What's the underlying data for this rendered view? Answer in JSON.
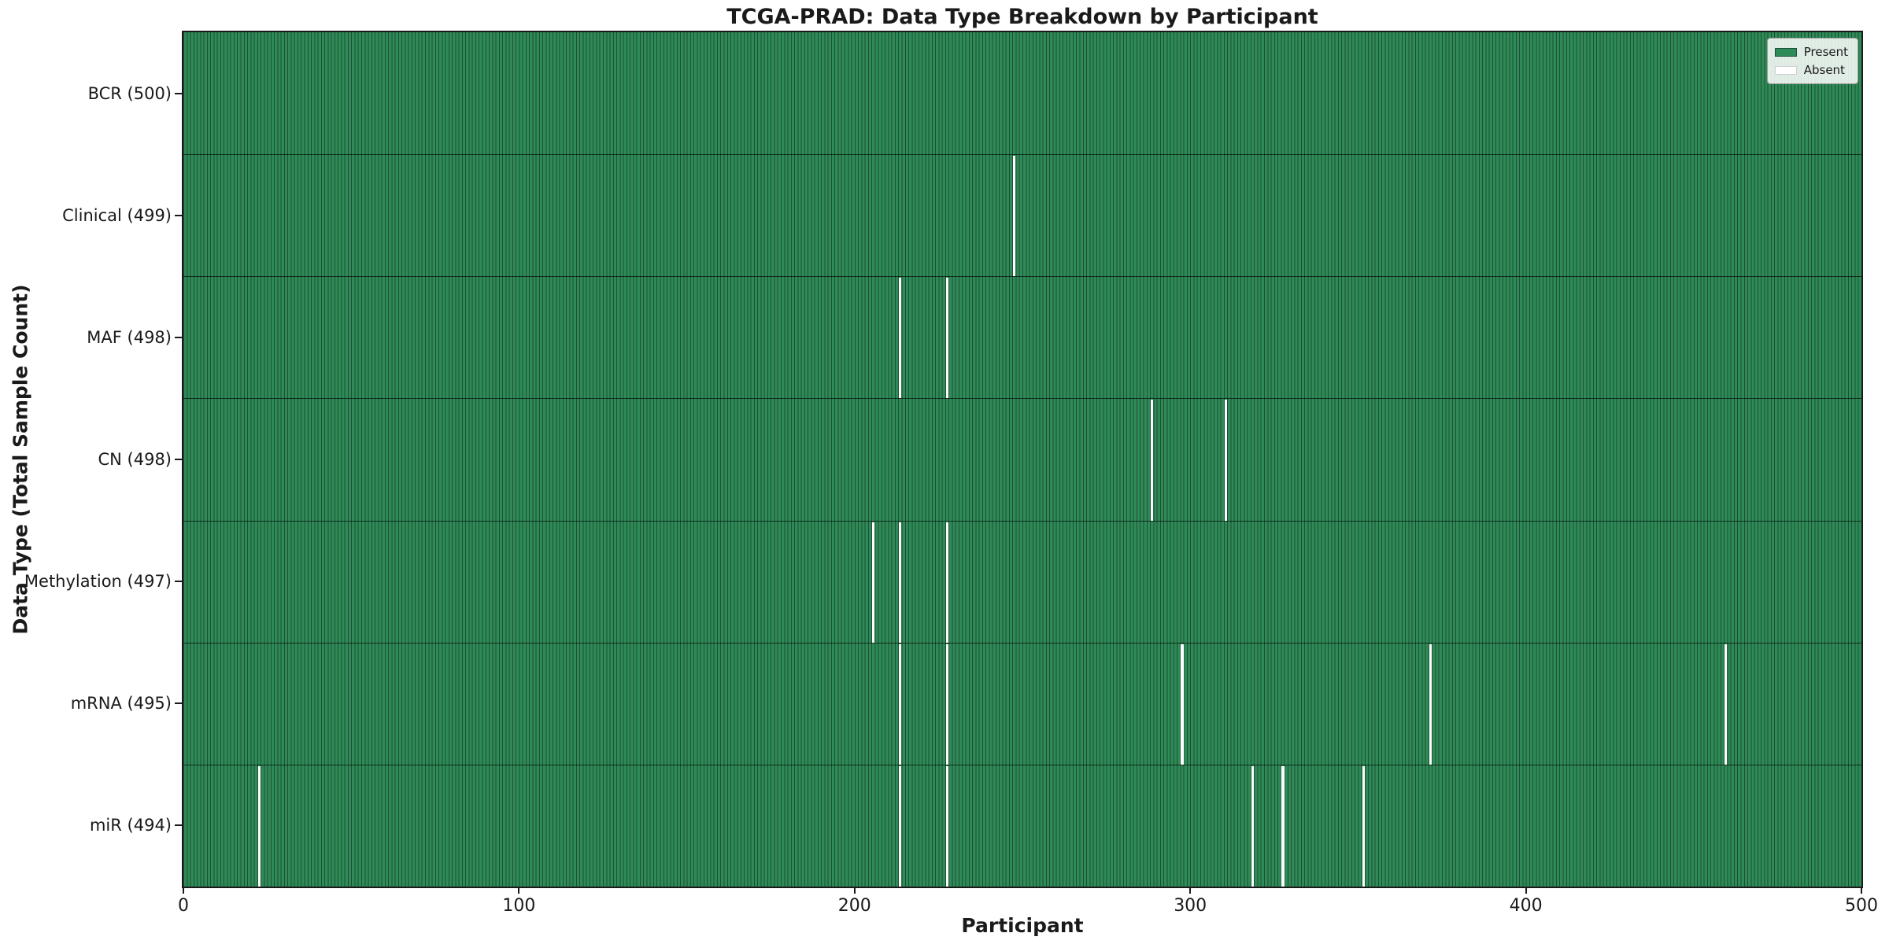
{
  "chart_data": {
    "type": "heatmap",
    "title": "TCGA-PRAD: Data Type Breakdown by Participant",
    "xlabel": "Participant",
    "ylabel": "Data Type (Total Sample Count)",
    "x_range": [
      0,
      500
    ],
    "xticks": [
      0,
      100,
      200,
      300,
      400,
      500
    ],
    "n_participants": 500,
    "grid": false,
    "legend_position": "upper right",
    "legend": [
      "Present",
      "Absent"
    ],
    "colors": {
      "present_fill": "#2e8b57",
      "bar_edge": "#1e4f36",
      "absent_fill": "#ffffff",
      "row_separator": "rgba(0,0,0,0.65)",
      "axis_spine": "#1a1a1a"
    },
    "rows": [
      {
        "label": "BCR (500)",
        "data_type": "BCR",
        "total": 500,
        "absent_participants": []
      },
      {
        "label": "Clinical (499)",
        "data_type": "Clinical",
        "total": 499,
        "absent_participants": [
          247
        ]
      },
      {
        "label": "MAF (498)",
        "data_type": "MAF",
        "total": 498,
        "absent_participants": [
          213,
          227
        ]
      },
      {
        "label": "CN (498)",
        "data_type": "CN",
        "total": 498,
        "absent_participants": [
          288,
          310
        ]
      },
      {
        "label": "Methylation (497)",
        "data_type": "Methylation",
        "total": 497,
        "absent_participants": [
          205,
          213,
          227
        ]
      },
      {
        "label": "mRNA (495)",
        "data_type": "mRNA",
        "total": 495,
        "absent_participants": [
          213,
          227,
          297,
          371,
          459
        ]
      },
      {
        "label": "miR (494)",
        "data_type": "miR",
        "total": 494,
        "absent_participants": [
          22,
          213,
          227,
          318,
          327,
          351
        ]
      }
    ]
  }
}
